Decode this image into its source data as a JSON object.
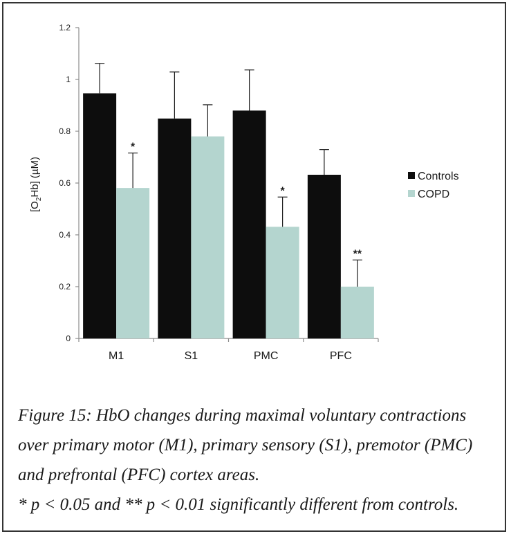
{
  "chart_data": {
    "type": "bar",
    "categories": [
      "M1",
      "S1",
      "PMC",
      "PFC"
    ],
    "series": [
      {
        "name": "Controls",
        "values": [
          0.946,
          0.849,
          0.88,
          0.632
        ],
        "errors": [
          0.116,
          0.18,
          0.157,
          0.097
        ],
        "annotations": [
          "",
          "",
          "",
          ""
        ]
      },
      {
        "name": "COPD",
        "values": [
          0.581,
          0.78,
          0.431,
          0.2
        ],
        "errors": [
          0.135,
          0.122,
          0.115,
          0.103
        ],
        "annotations": [
          "*",
          "",
          "*",
          "**"
        ]
      }
    ],
    "ylabel": {
      "prefix": "[O",
      "subscript": "2",
      "suffix": "Hb] (µM)"
    },
    "ylim": [
      0,
      1.2
    ],
    "yticks": [
      "0",
      "0.2",
      "0.4",
      "0.6",
      "0.8",
      "1",
      "1.2"
    ],
    "grid": false,
    "legend": "right",
    "colors": {
      "Controls": "#0d0d0d",
      "COPD": "#b4d5cf",
      "axis": "#8c8c8c",
      "text": "#1a1a1a"
    }
  },
  "caption": {
    "lines": [
      "Figure 15: HbO changes during maximal voluntary contractions",
      "over primary motor (M1), primary sensory (S1), premotor (PMC)",
      "and prefrontal (PFC) cortex areas.",
      "* p < 0.05 and ** p < 0.01 significantly different from controls."
    ]
  }
}
